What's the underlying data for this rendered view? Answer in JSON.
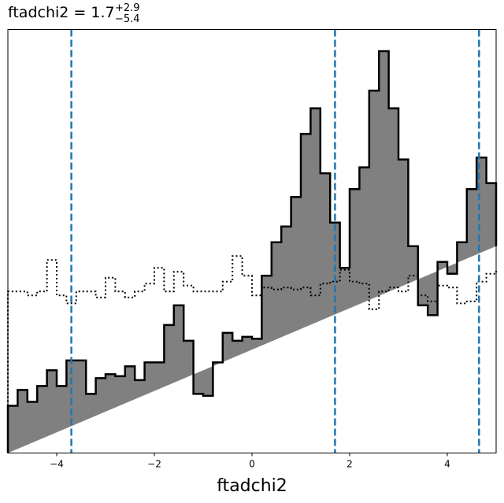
{
  "chart_data": {
    "type": "histogram",
    "title": {
      "base": "ftadchi2 = 1.7",
      "sup": "+2.9",
      "sub": "−5.4"
    },
    "xlabel": "ftadchi2",
    "ylabel": "",
    "xlim": [
      -5.0,
      5.0
    ],
    "ylim": [
      0,
      215
    ],
    "x_ticks": [
      -4,
      -2,
      0,
      2,
      4
    ],
    "x_tick_labels": [
      "−4",
      "−2",
      "0",
      "2",
      "4"
    ],
    "y_ticks_visible": false,
    "grid": false,
    "legend": "none",
    "bin_edges": [
      -5.0,
      -4.8,
      -4.6,
      -4.4,
      -4.2,
      -4.0,
      -3.8,
      -3.6,
      -3.4,
      -3.2,
      -3.0,
      -2.8,
      -2.6,
      -2.4,
      -2.2,
      -2.0,
      -1.8,
      -1.6,
      -1.4,
      -1.2,
      -1.0,
      -0.8,
      -0.6,
      -0.4,
      -0.2,
      0.0,
      0.2,
      0.4,
      0.6,
      0.8,
      1.0,
      1.2,
      1.4,
      1.6,
      1.8,
      2.0,
      2.2,
      2.4,
      2.6,
      2.8,
      3.0,
      3.2,
      3.4,
      3.6,
      3.8,
      4.0,
      4.2,
      4.4,
      4.6,
      4.8,
      5.0
    ],
    "series": [
      {
        "style": "filled-step",
        "values": [
          24,
          32,
          26,
          34,
          42,
          34,
          47,
          47,
          30,
          38,
          40,
          39,
          44,
          37,
          46,
          46,
          65,
          75,
          57,
          30,
          29,
          46,
          61,
          57,
          59,
          58,
          90,
          107,
          115,
          130,
          162,
          175,
          142,
          117,
          94,
          134,
          145,
          184,
          204,
          175,
          149,
          105,
          75,
          70,
          97,
          91,
          107,
          134,
          150,
          137,
          105
        ]
      },
      {
        "style": "dotted-step",
        "values": [
          82,
          82,
          80,
          82,
          98,
          80,
          76,
          82,
          82,
          79,
          89,
          82,
          79,
          82,
          86,
          94,
          82,
          92,
          85,
          82,
          82,
          82,
          87,
          100,
          90,
          80,
          84,
          83,
          84,
          83,
          84,
          80,
          86,
          87,
          93,
          87,
          86,
          73,
          82,
          84,
          82,
          90,
          80,
          77,
          85,
          84,
          76,
          77,
          87,
          91,
          93
        ]
      }
    ],
    "vlines": [
      -3.7,
      1.7,
      4.65
    ],
    "colors": {
      "fill": "#808080",
      "edge": "#000000",
      "vline": "#1f77b4"
    }
  }
}
